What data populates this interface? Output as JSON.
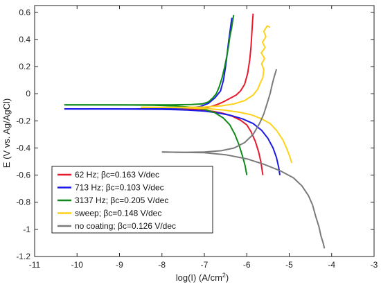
{
  "chart_data": {
    "type": "line",
    "title": "",
    "xlabel_main": "log(I) (A/cm",
    "xlabel_sup": "2",
    "xlabel_end": ")",
    "ylabel": "E (V vs. Ag/AgCl)",
    "xlim": [
      -11,
      -3
    ],
    "ylim": [
      -1.2,
      0.65
    ],
    "xticks": [
      -11,
      -10,
      -9,
      -8,
      -7,
      -6,
      -5,
      -4,
      -3
    ],
    "yticks": [
      0.6,
      0.4,
      0.2,
      0,
      -0.2,
      -0.4,
      -0.6,
      -0.8,
      -1,
      -1.2
    ],
    "xtick_labels": [
      "-11",
      "-10",
      "-9",
      "-8",
      "-7",
      "-6",
      "-5",
      "-4",
      "-3"
    ],
    "ytick_labels": [
      "0.6",
      "0.4",
      "0.2",
      "0",
      "-0.2",
      "-0.4",
      "-0.6",
      "-0.8",
      "-1",
      "-1.2"
    ],
    "grid": false,
    "legend_position": "bottom-left",
    "series": [
      {
        "name": "62 Hz; βc=0.163 V/dec",
        "color": "#e8192c",
        "points": [
          [
            -8.6,
            -0.112
          ],
          [
            -8.0,
            -0.112
          ],
          [
            -7.5,
            -0.112
          ],
          [
            -7.2,
            -0.11
          ],
          [
            -7.0,
            -0.105
          ],
          [
            -6.85,
            -0.095
          ],
          [
            -6.7,
            -0.08
          ],
          [
            -6.55,
            -0.06
          ],
          [
            -6.4,
            -0.035
          ],
          [
            -6.25,
            -0.01
          ],
          [
            -6.15,
            0.02
          ],
          [
            -6.05,
            0.07
          ],
          [
            -5.98,
            0.15
          ],
          [
            -5.93,
            0.25
          ],
          [
            -5.9,
            0.35
          ],
          [
            -5.88,
            0.45
          ],
          [
            -5.86,
            0.55
          ],
          [
            -5.85,
            0.59
          ]
        ],
        "points2": [
          [
            -8.6,
            -0.112
          ],
          [
            -8.0,
            -0.113
          ],
          [
            -7.5,
            -0.115
          ],
          [
            -7.1,
            -0.12
          ],
          [
            -6.8,
            -0.13
          ],
          [
            -6.55,
            -0.145
          ],
          [
            -6.35,
            -0.165
          ],
          [
            -6.15,
            -0.195
          ],
          [
            -6.0,
            -0.23
          ],
          [
            -5.9,
            -0.28
          ],
          [
            -5.8,
            -0.35
          ],
          [
            -5.72,
            -0.43
          ],
          [
            -5.67,
            -0.5
          ],
          [
            -5.64,
            -0.56
          ],
          [
            -5.62,
            -0.6
          ]
        ]
      },
      {
        "name": "713 Hz; βc=0.103 V/dec",
        "color": "#1a1ae6",
        "points": [
          [
            -10.3,
            -0.112
          ],
          [
            -9.5,
            -0.112
          ],
          [
            -8.5,
            -0.112
          ],
          [
            -7.8,
            -0.11
          ],
          [
            -7.4,
            -0.105
          ],
          [
            -7.1,
            -0.095
          ],
          [
            -6.9,
            -0.07
          ],
          [
            -6.75,
            -0.03
          ],
          [
            -6.62,
            0.02
          ],
          [
            -6.55,
            0.1
          ],
          [
            -6.5,
            0.2
          ],
          [
            -6.46,
            0.3
          ],
          [
            -6.43,
            0.38
          ],
          [
            -6.4,
            0.45
          ],
          [
            -6.37,
            0.52
          ],
          [
            -6.35,
            0.56
          ]
        ],
        "points2": [
          [
            -10.3,
            -0.112
          ],
          [
            -9.0,
            -0.113
          ],
          [
            -8.0,
            -0.115
          ],
          [
            -7.4,
            -0.12
          ],
          [
            -7.0,
            -0.128
          ],
          [
            -6.7,
            -0.14
          ],
          [
            -6.4,
            -0.158
          ],
          [
            -6.1,
            -0.185
          ],
          [
            -5.85,
            -0.22
          ],
          [
            -5.65,
            -0.27
          ],
          [
            -5.5,
            -0.33
          ],
          [
            -5.38,
            -0.4
          ],
          [
            -5.3,
            -0.47
          ],
          [
            -5.25,
            -0.54
          ],
          [
            -5.22,
            -0.6
          ]
        ]
      },
      {
        "name": "3137 Hz; βc=0.205 V/dec",
        "color": "#0f8a1a",
        "points": [
          [
            -10.3,
            -0.082
          ],
          [
            -9.5,
            -0.082
          ],
          [
            -8.5,
            -0.082
          ],
          [
            -7.8,
            -0.082
          ],
          [
            -7.3,
            -0.08
          ],
          [
            -7.05,
            -0.075
          ],
          [
            -6.9,
            -0.06
          ],
          [
            -6.8,
            -0.03
          ],
          [
            -6.72,
            0.0
          ],
          [
            -6.65,
            0.05
          ],
          [
            -6.58,
            0.12
          ],
          [
            -6.52,
            0.2
          ],
          [
            -6.47,
            0.28
          ],
          [
            -6.43,
            0.35
          ],
          [
            -6.4,
            0.42
          ],
          [
            -6.36,
            0.48
          ],
          [
            -6.33,
            0.54
          ],
          [
            -6.31,
            0.58
          ]
        ],
        "points2": [
          [
            -10.3,
            -0.082
          ],
          [
            -9.0,
            -0.083
          ],
          [
            -8.2,
            -0.085
          ],
          [
            -7.7,
            -0.09
          ],
          [
            -7.3,
            -0.1
          ],
          [
            -7.0,
            -0.115
          ],
          [
            -6.75,
            -0.14
          ],
          [
            -6.55,
            -0.18
          ],
          [
            -6.4,
            -0.23
          ],
          [
            -6.28,
            -0.3
          ],
          [
            -6.18,
            -0.38
          ],
          [
            -6.1,
            -0.46
          ],
          [
            -6.04,
            -0.53
          ],
          [
            -6.01,
            -0.58
          ],
          [
            -6.0,
            -0.6
          ]
        ]
      },
      {
        "name": "sweep; βc=0.148 V/dec",
        "color": "#ffd21a",
        "points": [
          [
            -8.5,
            -0.1
          ],
          [
            -8.0,
            -0.1
          ],
          [
            -7.5,
            -0.1
          ],
          [
            -7.0,
            -0.098
          ],
          [
            -6.6,
            -0.09
          ],
          [
            -6.3,
            -0.075
          ],
          [
            -6.05,
            -0.05
          ],
          [
            -5.85,
            -0.01
          ],
          [
            -5.75,
            0.03
          ],
          [
            -5.68,
            0.08
          ],
          [
            -5.62,
            0.12
          ],
          [
            -5.6,
            0.18
          ],
          [
            -5.65,
            0.22
          ],
          [
            -5.58,
            0.26
          ],
          [
            -5.66,
            0.3
          ],
          [
            -5.57,
            0.34
          ],
          [
            -5.63,
            0.38
          ],
          [
            -5.55,
            0.42
          ],
          [
            -5.6,
            0.46
          ],
          [
            -5.52,
            0.5
          ],
          [
            -5.45,
            0.49
          ]
        ],
        "points2": [
          [
            -8.5,
            -0.1
          ],
          [
            -7.8,
            -0.102
          ],
          [
            -7.3,
            -0.105
          ],
          [
            -6.9,
            -0.11
          ],
          [
            -6.55,
            -0.12
          ],
          [
            -6.2,
            -0.135
          ],
          [
            -5.9,
            -0.155
          ],
          [
            -5.65,
            -0.185
          ],
          [
            -5.45,
            -0.22
          ],
          [
            -5.3,
            -0.27
          ],
          [
            -5.15,
            -0.34
          ],
          [
            -5.05,
            -0.41
          ],
          [
            -4.98,
            -0.47
          ],
          [
            -4.94,
            -0.51
          ]
        ]
      },
      {
        "name": "no coating; βc=0.126 V/dec",
        "color": "#7a7a7a",
        "points": [
          [
            -8.0,
            -0.43
          ],
          [
            -7.5,
            -0.432
          ],
          [
            -7.0,
            -0.43
          ],
          [
            -6.6,
            -0.42
          ],
          [
            -6.3,
            -0.4
          ],
          [
            -6.05,
            -0.36
          ],
          [
            -5.85,
            -0.3
          ],
          [
            -5.7,
            -0.22
          ],
          [
            -5.6,
            -0.15
          ],
          [
            -5.52,
            -0.07
          ],
          [
            -5.45,
            0.0
          ],
          [
            -5.4,
            0.07
          ],
          [
            -5.35,
            0.13
          ],
          [
            -5.3,
            0.18
          ]
        ],
        "points2": [
          [
            -8.0,
            -0.43
          ],
          [
            -7.0,
            -0.435
          ],
          [
            -6.5,
            -0.45
          ],
          [
            -6.0,
            -0.48
          ],
          [
            -5.6,
            -0.52
          ],
          [
            -5.2,
            -0.57
          ],
          [
            -4.9,
            -0.62
          ],
          [
            -4.7,
            -0.68
          ],
          [
            -4.55,
            -0.75
          ],
          [
            -4.45,
            -0.82
          ],
          [
            -4.38,
            -0.9
          ],
          [
            -4.3,
            -0.98
          ],
          [
            -4.25,
            -1.05
          ],
          [
            -4.2,
            -1.1
          ],
          [
            -4.17,
            -1.14
          ]
        ]
      }
    ]
  }
}
